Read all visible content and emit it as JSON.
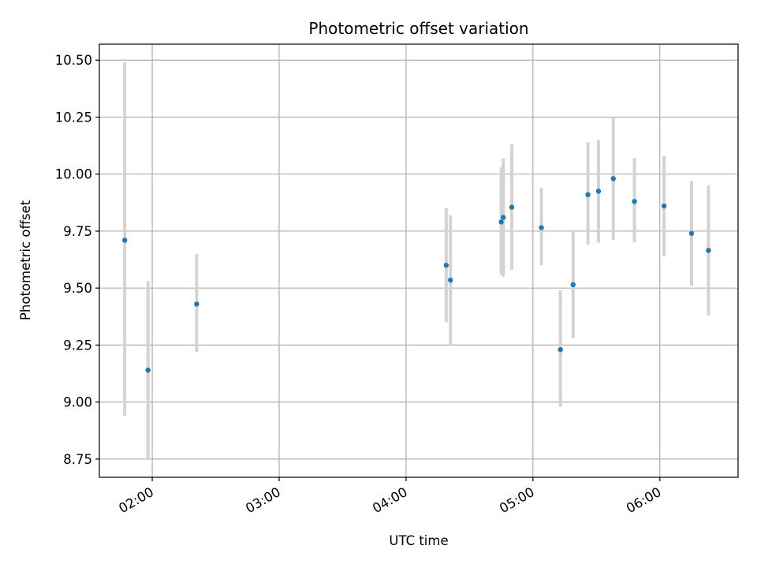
{
  "chart_data": {
    "type": "scatter",
    "title": "Photometric offset variation",
    "xlabel": "UTC time",
    "ylabel": "Photometric offset",
    "grid": true,
    "xlim": [
      "01:35",
      "06:37"
    ],
    "ylim": [
      8.67,
      10.57
    ],
    "x_ticks": [
      "02:00",
      "03:00",
      "04:00",
      "05:00",
      "06:00"
    ],
    "y_ticks": [
      8.75,
      9.0,
      9.25,
      9.5,
      9.75,
      10.0,
      10.25,
      10.5
    ],
    "y_tick_labels": [
      "8.75",
      "9.00",
      "9.25",
      "9.50",
      "9.75",
      "10.00",
      "10.25",
      "10.50"
    ],
    "marker_color": "#1f77b4",
    "errorbar_color": "#d3d3d3",
    "points": [
      {
        "x": "01:47",
        "y": 9.71,
        "low": 8.94,
        "high": 10.49
      },
      {
        "x": "01:58",
        "y": 9.14,
        "low": 8.75,
        "high": 9.53
      },
      {
        "x": "02:21",
        "y": 9.43,
        "low": 9.22,
        "high": 9.65
      },
      {
        "x": "04:19",
        "y": 9.6,
        "low": 9.35,
        "high": 9.85
      },
      {
        "x": "04:21",
        "y": 9.535,
        "low": 9.25,
        "high": 9.82
      },
      {
        "x": "04:45",
        "y": 9.79,
        "low": 9.56,
        "high": 10.03
      },
      {
        "x": "04:46",
        "y": 9.81,
        "low": 9.55,
        "high": 10.07
      },
      {
        "x": "04:50",
        "y": 9.855,
        "low": 9.58,
        "high": 10.13
      },
      {
        "x": "05:04",
        "y": 9.765,
        "low": 9.6,
        "high": 9.94
      },
      {
        "x": "05:13",
        "y": 9.23,
        "low": 8.98,
        "high": 9.49
      },
      {
        "x": "05:19",
        "y": 9.515,
        "low": 9.28,
        "high": 9.75
      },
      {
        "x": "05:26",
        "y": 9.91,
        "low": 9.69,
        "high": 10.14
      },
      {
        "x": "05:31",
        "y": 9.925,
        "low": 9.7,
        "high": 10.15
      },
      {
        "x": "05:38",
        "y": 9.98,
        "low": 9.71,
        "high": 10.25
      },
      {
        "x": "05:48",
        "y": 9.88,
        "low": 9.7,
        "high": 10.07
      },
      {
        "x": "06:02",
        "y": 9.86,
        "low": 9.64,
        "high": 10.08
      },
      {
        "x": "06:15",
        "y": 9.74,
        "low": 9.51,
        "high": 9.97
      },
      {
        "x": "06:23",
        "y": 9.665,
        "low": 9.38,
        "high": 9.95
      }
    ]
  }
}
